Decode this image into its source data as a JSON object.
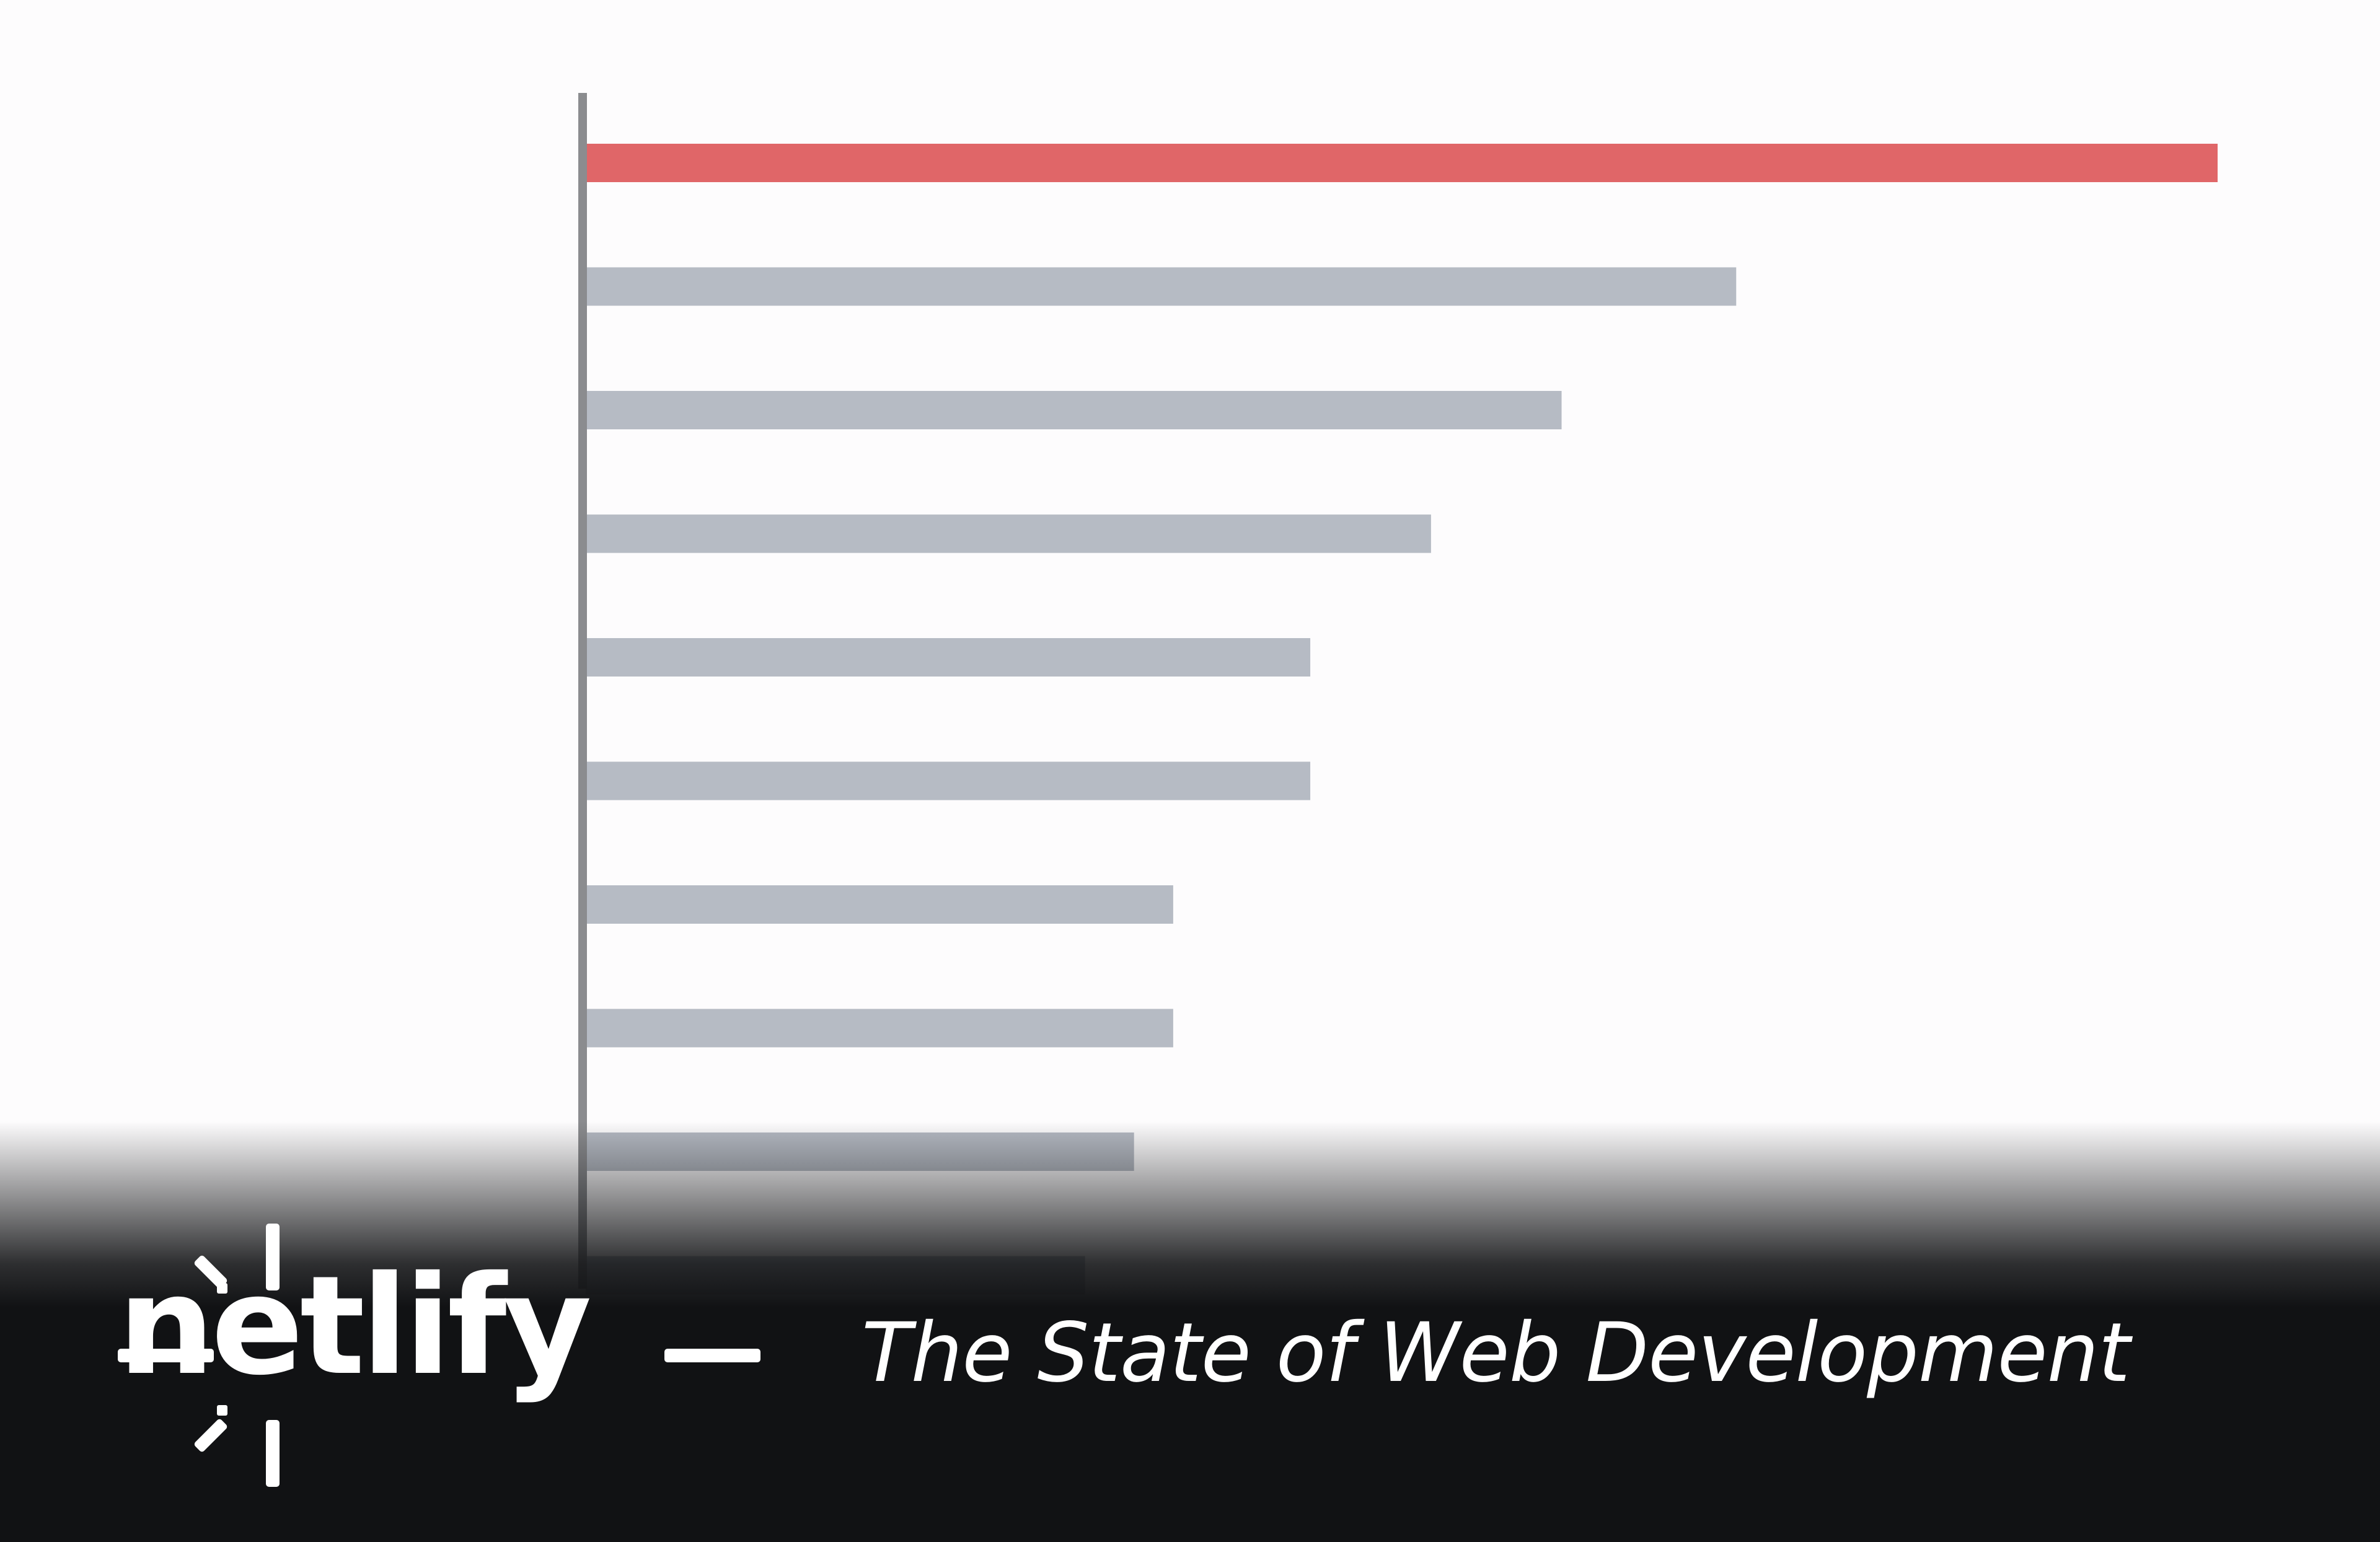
{
  "chart_data": {
    "type": "bar",
    "orientation": "horizontal",
    "title": "",
    "xlabel": "",
    "ylabel": "",
    "xlim": [
      0,
      100
    ],
    "values": [
      100,
      70.5,
      59.8,
      51.8,
      44.4,
      44.4,
      36.0,
      36.0,
      33.6,
      30.6
    ],
    "highlight_index": 0,
    "colors": {
      "highlight": "#e06668",
      "default": "#b6bbc4",
      "axis": "#8b8c8f"
    }
  },
  "footer": {
    "brand": "netlify",
    "subtitle": "The State of Web Development",
    "background": "#111214"
  }
}
